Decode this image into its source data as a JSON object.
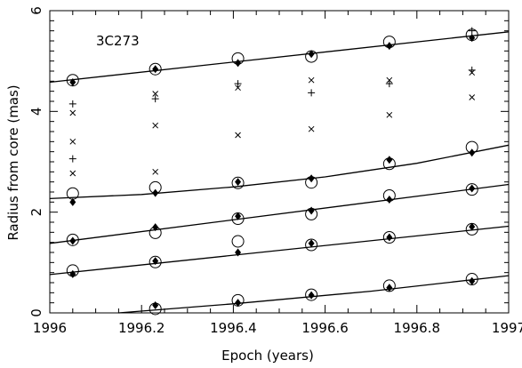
{
  "chart_data": {
    "type": "scatter",
    "xlabel": "Epoch (years)",
    "ylabel": "Radius from core (mas)",
    "annotation": "3C273",
    "xlim": [
      1996,
      1997
    ],
    "ylim": [
      0,
      6
    ],
    "xticks": [
      "1996",
      "1996.2",
      "1996.4",
      "1996.6",
      "1996.8",
      "1997"
    ],
    "yticks": [
      "0",
      "2",
      "4",
      "6"
    ],
    "epochs": [
      1996.05,
      1996.23,
      1996.41,
      1996.57,
      1996.74,
      1996.92
    ],
    "series": [
      {
        "marker": "circle",
        "points": [
          [
            1996.05,
            4.62
          ],
          [
            1996.23,
            4.84
          ],
          [
            1996.41,
            5.05
          ],
          [
            1996.57,
            5.09
          ],
          [
            1996.74,
            5.38
          ],
          [
            1996.92,
            5.52
          ],
          [
            1996.05,
            2.37
          ],
          [
            1996.23,
            2.49
          ],
          [
            1996.41,
            2.58
          ],
          [
            1996.57,
            2.59
          ],
          [
            1996.74,
            2.96
          ],
          [
            1996.92,
            3.29
          ],
          [
            1996.05,
            1.45
          ],
          [
            1996.23,
            1.59
          ],
          [
            1996.41,
            1.87
          ],
          [
            1996.57,
            1.96
          ],
          [
            1996.74,
            2.33
          ],
          [
            1996.92,
            2.45
          ],
          [
            1996.05,
            0.84
          ],
          [
            1996.23,
            1.01
          ],
          [
            1996.41,
            1.42
          ],
          [
            1996.57,
            1.35
          ],
          [
            1996.74,
            1.5
          ],
          [
            1996.92,
            1.66
          ],
          [
            1996.23,
            0.08
          ],
          [
            1996.41,
            0.25
          ],
          [
            1996.57,
            0.36
          ],
          [
            1996.74,
            0.54
          ],
          [
            1996.92,
            0.67
          ]
        ]
      },
      {
        "marker": "diamond",
        "points": [
          [
            1996.05,
            4.58
          ],
          [
            1996.23,
            4.84
          ],
          [
            1996.41,
            4.96
          ],
          [
            1996.57,
            5.14
          ],
          [
            1996.74,
            5.3
          ],
          [
            1996.92,
            5.46
          ],
          [
            1996.05,
            2.2
          ],
          [
            1996.23,
            2.38
          ],
          [
            1996.41,
            2.6
          ],
          [
            1996.57,
            2.67
          ],
          [
            1996.74,
            3.04
          ],
          [
            1996.92,
            3.18
          ],
          [
            1996.05,
            1.43
          ],
          [
            1996.23,
            1.7
          ],
          [
            1996.41,
            1.92
          ],
          [
            1996.57,
            2.03
          ],
          [
            1996.74,
            2.25
          ],
          [
            1996.92,
            2.47
          ],
          [
            1996.05,
            0.77
          ],
          [
            1996.23,
            1.03
          ],
          [
            1996.41,
            1.2
          ],
          [
            1996.57,
            1.38
          ],
          [
            1996.74,
            1.5
          ],
          [
            1996.92,
            1.71
          ],
          [
            1996.23,
            0.15
          ],
          [
            1996.41,
            0.2
          ],
          [
            1996.57,
            0.35
          ],
          [
            1996.74,
            0.5
          ],
          [
            1996.92,
            0.63
          ]
        ]
      },
      {
        "marker": "cross",
        "points": [
          [
            1996.05,
            3.97
          ],
          [
            1996.05,
            3.4
          ],
          [
            1996.05,
            2.77
          ],
          [
            1996.23,
            4.35
          ],
          [
            1996.23,
            3.72
          ],
          [
            1996.23,
            2.8
          ],
          [
            1996.41,
            4.47
          ],
          [
            1996.41,
            3.53
          ],
          [
            1996.57,
            4.62
          ],
          [
            1996.57,
            3.65
          ],
          [
            1996.74,
            4.62
          ],
          [
            1996.74,
            3.93
          ],
          [
            1996.92,
            4.77
          ],
          [
            1996.92,
            4.28
          ]
        ]
      },
      {
        "marker": "plus",
        "points": [
          [
            1996.05,
            4.15
          ],
          [
            1996.05,
            3.06
          ],
          [
            1996.23,
            4.25
          ],
          [
            1996.41,
            4.55
          ],
          [
            1996.57,
            4.37
          ],
          [
            1996.74,
            4.55
          ],
          [
            1996.92,
            4.82
          ],
          [
            1996.92,
            5.6
          ]
        ]
      }
    ],
    "fits": [
      {
        "points": [
          [
            1996.0,
            4.58
          ],
          [
            1997.0,
            5.58
          ]
        ]
      },
      {
        "points": [
          [
            1996.0,
            2.27
          ],
          [
            1996.2,
            2.35
          ],
          [
            1996.4,
            2.5
          ],
          [
            1996.6,
            2.7
          ],
          [
            1996.8,
            2.97
          ],
          [
            1997.0,
            3.33
          ]
        ]
      },
      {
        "points": [
          [
            1996.0,
            1.38
          ],
          [
            1997.0,
            2.55
          ]
        ]
      },
      {
        "points": [
          [
            1996.0,
            0.76
          ],
          [
            1997.0,
            1.72
          ]
        ]
      },
      {
        "points": [
          [
            1996.15,
            0.0
          ],
          [
            1996.4,
            0.18
          ],
          [
            1996.7,
            0.43
          ],
          [
            1997.0,
            0.74
          ]
        ]
      }
    ]
  }
}
